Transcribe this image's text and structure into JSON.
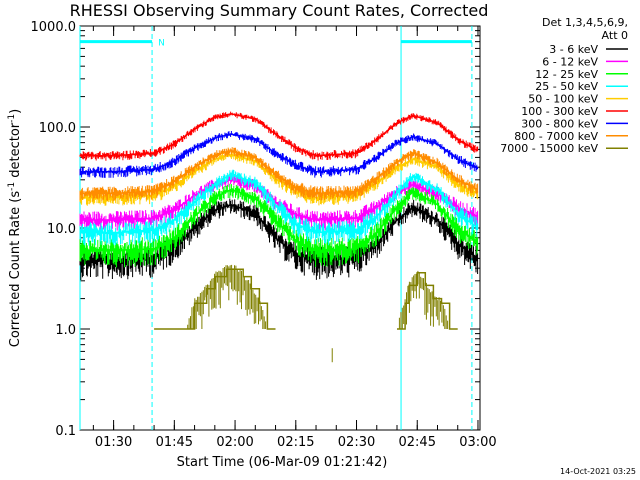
{
  "chart_data": {
    "type": "line",
    "title": "RHESSI Observing Summary Count Rates, Corrected",
    "xlabel": "Start Time (06-Mar-09 01:21:42)",
    "ylabel": "Corrected Count Rate (s⁻¹ detector⁻¹)",
    "ylabel_main": "Corrected Count Rate (s",
    "ylabel_sup1": "-1",
    "ylabel_mid": " detector",
    "ylabel_sup2": "-1",
    "ylabel_end": ")",
    "y_scale": "log",
    "ylim": [
      0.1,
      1000
    ],
    "y_ticks": [
      {
        "value": 0.1,
        "label": "0.1"
      },
      {
        "value": 1,
        "label": "1.0"
      },
      {
        "value": 10,
        "label": "10.0"
      },
      {
        "value": 100,
        "label": "100.0"
      },
      {
        "value": 1000,
        "label": "1000.0"
      }
    ],
    "xlim": [
      "01:21:42",
      "03:00:30"
    ],
    "x_ticks": [
      "01:30",
      "01:45",
      "02:00",
      "02:15",
      "02:30",
      "02:45",
      "03:00"
    ],
    "x_minor_step_minutes": 5,
    "legend": {
      "header_lines": [
        "Det 1,3,4,5,6,9,",
        "Att 0"
      ],
      "placement": "right"
    },
    "series": [
      {
        "name": "3 - 6 keV",
        "color": "#000000",
        "x": [
          "01:21:42",
          "01:30",
          "01:40",
          "01:45",
          "01:50",
          "01:55",
          "01:59",
          "02:05",
          "02:10",
          "02:15",
          "02:20",
          "02:30",
          "02:35",
          "02:40",
          "02:44",
          "02:50",
          "02:55",
          "03:00"
        ],
        "y": [
          4.8,
          4.8,
          5.0,
          6.5,
          10.0,
          15.0,
          17.0,
          14.0,
          8.0,
          5.5,
          4.8,
          5.0,
          7.0,
          12.0,
          16.0,
          12.0,
          7.0,
          5.0
        ]
      },
      {
        "name": "6 - 12 keV",
        "color": "#ff00ff",
        "x": [
          "01:21:42",
          "01:30",
          "01:40",
          "01:45",
          "01:50",
          "01:55",
          "01:59",
          "02:05",
          "02:10",
          "02:15",
          "02:20",
          "02:30",
          "02:35",
          "02:40",
          "02:44",
          "02:50",
          "02:55",
          "03:00"
        ],
        "y": [
          12.0,
          12.0,
          12.5,
          15.0,
          21.0,
          27.0,
          30.0,
          26.0,
          18.0,
          13.5,
          12.0,
          12.5,
          16.0,
          23.0,
          27.0,
          22.0,
          16.0,
          13.0
        ]
      },
      {
        "name": "12 - 25 keV",
        "color": "#00ff00",
        "x": [
          "01:21:42",
          "01:30",
          "01:40",
          "01:45",
          "01:50",
          "01:55",
          "01:59",
          "02:05",
          "02:10",
          "02:15",
          "02:20",
          "02:30",
          "02:35",
          "02:40",
          "02:44",
          "02:50",
          "02:55",
          "03:00"
        ],
        "y": [
          6.0,
          6.0,
          6.2,
          8.0,
          13.0,
          20.0,
          24.0,
          20.0,
          12.0,
          7.5,
          6.0,
          6.2,
          9.0,
          16.0,
          23.0,
          17.0,
          10.0,
          7.0
        ]
      },
      {
        "name": "25 - 50 keV",
        "color": "#00ffff",
        "x": [
          "01:21:42",
          "01:30",
          "01:40",
          "01:45",
          "01:50",
          "01:55",
          "01:59",
          "02:05",
          "02:10",
          "02:15",
          "02:20",
          "02:30",
          "02:35",
          "02:40",
          "02:44",
          "02:50",
          "02:55",
          "03:00"
        ],
        "y": [
          9.0,
          9.0,
          9.5,
          12.0,
          18.0,
          27.0,
          34.0,
          28.0,
          17.0,
          11.0,
          9.0,
          9.5,
          13.0,
          22.0,
          33.0,
          24.0,
          14.0,
          10.0
        ]
      },
      {
        "name": "50 - 100 keV",
        "color": "#ffcc00",
        "x": [
          "01:21:42",
          "01:30",
          "01:40",
          "01:45",
          "01:50",
          "01:55",
          "01:59",
          "02:05",
          "02:10",
          "02:15",
          "02:20",
          "02:30",
          "02:35",
          "02:40",
          "02:44",
          "02:50",
          "02:55",
          "03:00"
        ],
        "y": [
          20.0,
          20.0,
          21.0,
          26.0,
          36.0,
          48.0,
          53.0,
          46.0,
          31.0,
          23.0,
          20.0,
          21.0,
          28.0,
          40.0,
          48.0,
          40.0,
          27.0,
          22.0
        ]
      },
      {
        "name": "100 - 300 keV",
        "color": "#ff0000",
        "x": [
          "01:21:42",
          "01:30",
          "01:40",
          "01:45",
          "01:50",
          "01:55",
          "01:59",
          "02:05",
          "02:10",
          "02:15",
          "02:20",
          "02:30",
          "02:35",
          "02:40",
          "02:44",
          "02:50",
          "02:55",
          "03:00"
        ],
        "y": [
          52.0,
          52.0,
          55.0,
          68.0,
          95.0,
          125.0,
          135.0,
          120.0,
          85.0,
          62.0,
          52.0,
          55.0,
          75.0,
          110.0,
          130.0,
          110.0,
          75.0,
          58.0
        ]
      },
      {
        "name": "300 - 800 keV",
        "color": "#0000ff",
        "x": [
          "01:21:42",
          "01:30",
          "01:40",
          "01:45",
          "01:50",
          "01:55",
          "01:59",
          "02:05",
          "02:10",
          "02:15",
          "02:20",
          "02:30",
          "02:35",
          "02:40",
          "02:44",
          "02:50",
          "02:55",
          "03:00"
        ],
        "y": [
          36.0,
          36.0,
          38.0,
          46.0,
          62.0,
          78.0,
          85.0,
          76.0,
          55.0,
          42.0,
          36.0,
          38.0,
          50.0,
          70.0,
          80.0,
          68.0,
          48.0,
          39.0
        ]
      },
      {
        "name": "800 - 7000 keV",
        "color": "#ff8c00",
        "x": [
          "01:21:42",
          "01:30",
          "01:40",
          "01:45",
          "01:50",
          "01:55",
          "01:59",
          "02:05",
          "02:10",
          "02:15",
          "02:20",
          "02:30",
          "02:35",
          "02:40",
          "02:44",
          "02:50",
          "02:55",
          "03:00"
        ],
        "y": [
          22.0,
          22.0,
          23.0,
          29.0,
          40.0,
          53.0,
          58.0,
          50.0,
          34.0,
          25.0,
          22.0,
          23.0,
          31.0,
          45.0,
          55.0,
          44.0,
          30.0,
          24.0
        ]
      },
      {
        "name": "7000 - 15000 keV",
        "color": "#808000",
        "x": [
          "01:40",
          "01:48",
          "01:50",
          "01:53",
          "01:55",
          "01:58",
          "02:00",
          "02:02",
          "02:04",
          "02:06",
          "02:08",
          "02:10",
          "02:40",
          "02:42",
          "02:43",
          "02:45",
          "02:47",
          "02:49",
          "02:51",
          "02:53",
          "02:55"
        ],
        "y": [
          1.0,
          1.0,
          1.8,
          2.5,
          3.3,
          3.9,
          3.9,
          3.3,
          2.5,
          1.8,
          1.0,
          1.0,
          1.0,
          1.8,
          2.7,
          3.6,
          2.7,
          2.0,
          1.8,
          1.0,
          1.0
        ]
      }
    ],
    "annotations": [
      {
        "type": "vline",
        "x": "01:21:42",
        "color": "#00ffff",
        "style": "solid"
      },
      {
        "type": "vline",
        "x": "01:39:30",
        "color": "#00ffff",
        "style": "dashed"
      },
      {
        "type": "vline",
        "x": "02:41:00",
        "color": "#00ffff",
        "style": "solid"
      },
      {
        "type": "vline",
        "x": "02:58:30",
        "color": "#00ffff",
        "style": "dashed"
      },
      {
        "type": "bar",
        "x_start": "01:21:42",
        "x_end": "01:39:30",
        "y": 700,
        "color": "#00ffff",
        "label": "N"
      },
      {
        "type": "bar",
        "x_start": "02:41:00",
        "x_end": "02:58:30",
        "y": 700,
        "color": "#00ffff",
        "label": ""
      },
      {
        "type": "point",
        "x": "02:24:00",
        "y": 0.55,
        "color": "#808000"
      }
    ]
  },
  "timestamp": "14-Oct-2021 03:25"
}
